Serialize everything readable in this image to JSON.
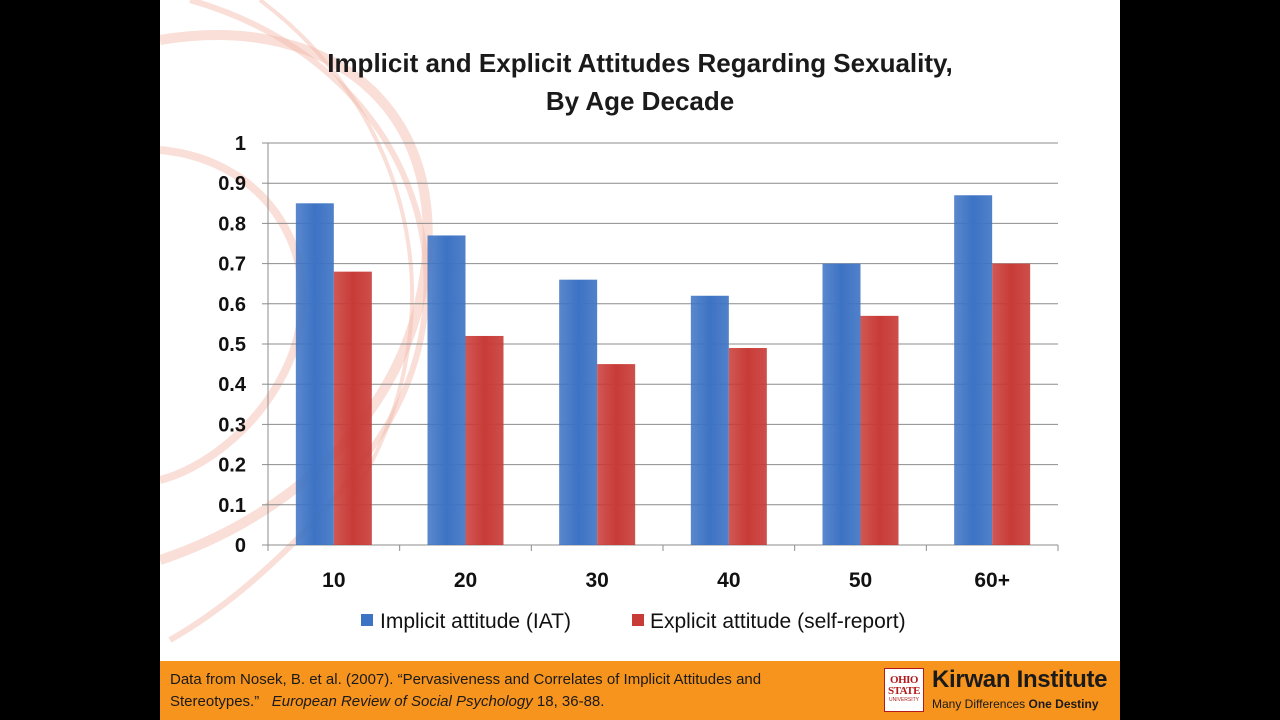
{
  "slide": {
    "footer": {
      "citation_line1": "Data from Nosek, B. et al. (2007). “Pervasiveness and Correlates of Implicit Attitudes and",
      "citation_line2_prefix": "Stereotypes.”",
      "citation_journal": "European Review of Social Psychology",
      "citation_line2_suffix": "18, 36-88.",
      "logo_text": "OHIO STATE",
      "logo_subtext": "UNIVERSITY",
      "institute_name": "Kirwan Institute",
      "tagline_part1": "Many Differences",
      "tagline_part2": "One Destiny"
    },
    "colors": {
      "footer_bg": "#f7941d",
      "implicit": "#3d73c4",
      "explicit": "#c83b37",
      "swirl": "#f2b8a8"
    }
  },
  "chart_data": {
    "type": "bar",
    "title_lines": [
      "Implicit and Explicit Attitudes Regarding Sexuality,",
      "By Age Decade"
    ],
    "categories": [
      "10",
      "20",
      "30",
      "40",
      "50",
      "60+"
    ],
    "series": [
      {
        "name": "Implicit attitude (IAT)",
        "values": [
          0.85,
          0.77,
          0.66,
          0.62,
          0.7,
          0.87
        ],
        "color": "#3d73c4"
      },
      {
        "name": "Explicit attitude (self-report)",
        "values": [
          0.68,
          0.52,
          0.45,
          0.49,
          0.57,
          0.7
        ],
        "color": "#c83b37"
      }
    ],
    "yticks": [
      "0",
      "0.1",
      "0.2",
      "0.3",
      "0.4",
      "0.5",
      "0.6",
      "0.7",
      "0.8",
      "0.9",
      "1"
    ],
    "ylim": [
      0,
      1
    ],
    "grid": true,
    "legend_position": "bottom"
  }
}
